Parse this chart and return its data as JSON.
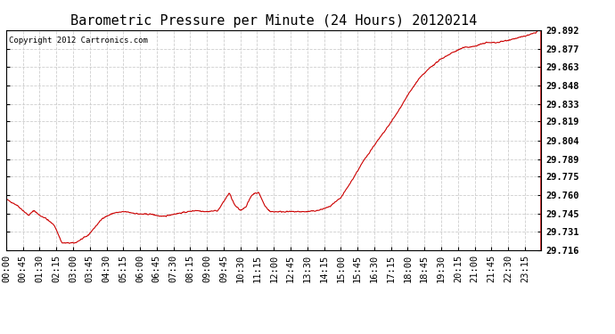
{
  "title": "Barometric Pressure per Minute (24 Hours) 20120214",
  "copyright_text": "Copyright 2012 Cartronics.com",
  "line_color": "#cc0000",
  "background_color": "#ffffff",
  "plot_background": "#ffffff",
  "grid_color": "#c8c8c8",
  "ylim": [
    29.716,
    29.892
  ],
  "yticks": [
    29.716,
    29.731,
    29.745,
    29.76,
    29.775,
    29.789,
    29.804,
    29.819,
    29.833,
    29.848,
    29.863,
    29.877,
    29.892
  ],
  "xtick_labels": [
    "00:00",
    "00:45",
    "01:30",
    "02:15",
    "03:00",
    "03:45",
    "04:30",
    "05:15",
    "06:00",
    "06:45",
    "07:30",
    "08:15",
    "09:00",
    "09:45",
    "10:30",
    "11:15",
    "12:00",
    "12:45",
    "13:30",
    "14:15",
    "15:00",
    "15:45",
    "16:30",
    "17:15",
    "18:00",
    "18:45",
    "19:30",
    "20:15",
    "21:00",
    "21:45",
    "22:30",
    "23:15"
  ],
  "title_fontsize": 11,
  "tick_fontsize": 7.5,
  "copyright_fontsize": 6.5,
  "waypoints": [
    [
      0,
      29.757
    ],
    [
      30,
      29.752
    ],
    [
      60,
      29.744
    ],
    [
      75,
      29.748
    ],
    [
      90,
      29.744
    ],
    [
      105,
      29.742
    ],
    [
      130,
      29.736
    ],
    [
      150,
      29.722
    ],
    [
      165,
      29.722
    ],
    [
      185,
      29.722
    ],
    [
      220,
      29.728
    ],
    [
      260,
      29.742
    ],
    [
      290,
      29.746
    ],
    [
      320,
      29.747
    ],
    [
      360,
      29.745
    ],
    [
      390,
      29.745
    ],
    [
      420,
      29.743
    ],
    [
      450,
      29.745
    ],
    [
      490,
      29.747
    ],
    [
      510,
      29.748
    ],
    [
      540,
      29.747
    ],
    [
      570,
      29.748
    ],
    [
      585,
      29.755
    ],
    [
      600,
      29.762
    ],
    [
      615,
      29.752
    ],
    [
      630,
      29.748
    ],
    [
      645,
      29.751
    ],
    [
      660,
      29.76
    ],
    [
      670,
      29.762
    ],
    [
      680,
      29.762
    ],
    [
      695,
      29.752
    ],
    [
      710,
      29.747
    ],
    [
      730,
      29.747
    ],
    [
      750,
      29.747
    ],
    [
      780,
      29.747
    ],
    [
      810,
      29.747
    ],
    [
      840,
      29.748
    ],
    [
      870,
      29.751
    ],
    [
      900,
      29.758
    ],
    [
      930,
      29.772
    ],
    [
      960,
      29.787
    ],
    [
      990,
      29.8
    ],
    [
      1020,
      29.812
    ],
    [
      1050,
      29.825
    ],
    [
      1080,
      29.84
    ],
    [
      1110,
      29.853
    ],
    [
      1140,
      29.862
    ],
    [
      1170,
      29.869
    ],
    [
      1200,
      29.874
    ],
    [
      1230,
      29.878
    ],
    [
      1260,
      29.879
    ],
    [
      1290,
      29.882
    ],
    [
      1320,
      29.882
    ],
    [
      1350,
      29.884
    ],
    [
      1380,
      29.886
    ],
    [
      1405,
      29.888
    ],
    [
      1425,
      29.89
    ],
    [
      1439,
      29.895
    ]
  ]
}
